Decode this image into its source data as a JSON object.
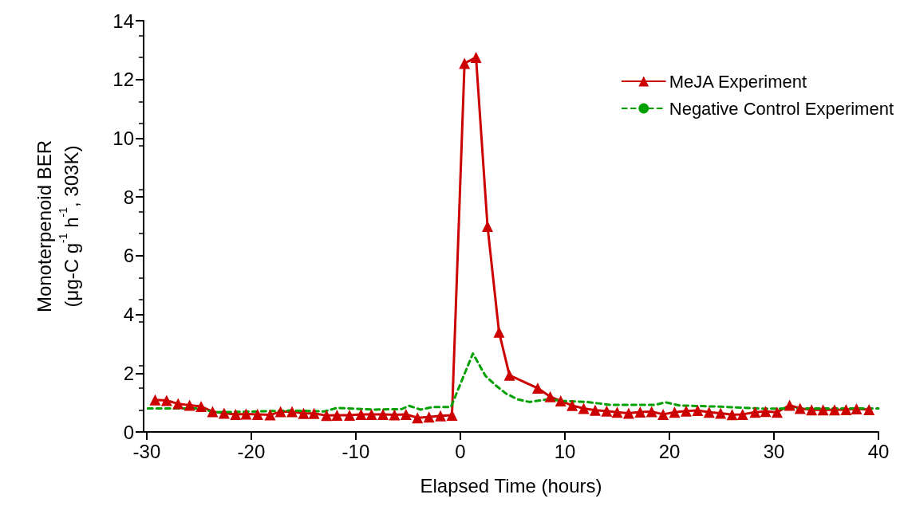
{
  "chart_data": {
    "type": "line",
    "xlabel": "Elapsed Time (hours)",
    "ylabel": "Monoterpenoid BER\n(μg-C g$^{-1}$ h$^{-1}$, 303K)",
    "xlim": [
      -30.3,
      40
    ],
    "xticks": [
      -30,
      -20,
      -10,
      0,
      10,
      20,
      30,
      40
    ],
    "ylim": [
      0,
      14
    ],
    "yticks": [
      0,
      2,
      4,
      6,
      8,
      10,
      12,
      14
    ],
    "grid": false,
    "legend": "top right",
    "series": [
      {
        "name": "MeJA Experiment",
        "color": "#cc0000",
        "marker": "triangle",
        "line_style": "solid",
        "x": [
          -29.2,
          -28.1,
          -27.0,
          -25.9,
          -24.8,
          -23.7,
          -22.6,
          -21.5,
          -20.5,
          -19.4,
          -18.2,
          -17.2,
          -16.1,
          -15.0,
          -14.0,
          -12.8,
          -11.8,
          -10.6,
          -9.5,
          -8.5,
          -7.4,
          -6.3,
          -5.2,
          -4.1,
          -3.0,
          -1.9,
          -0.8,
          0.4,
          1.5,
          2.6,
          3.7,
          4.7,
          7.4,
          8.6,
          9.6,
          10.7,
          11.8,
          12.9,
          14.0,
          15.0,
          16.1,
          17.2,
          18.3,
          19.4,
          20.5,
          21.6,
          22.7,
          23.8,
          24.9,
          26.0,
          27.0,
          28.2,
          29.2,
          30.3,
          31.5,
          32.5,
          33.6,
          34.7,
          35.8,
          36.9,
          37.9,
          39.1
        ],
        "values": [
          1.09,
          1.07,
          0.96,
          0.91,
          0.87,
          0.69,
          0.64,
          0.6,
          0.61,
          0.6,
          0.58,
          0.69,
          0.69,
          0.63,
          0.63,
          0.56,
          0.57,
          0.57,
          0.6,
          0.6,
          0.6,
          0.58,
          0.6,
          0.48,
          0.51,
          0.55,
          0.57,
          12.55,
          12.75,
          7.0,
          3.4,
          1.93,
          1.49,
          1.2,
          1.06,
          0.9,
          0.8,
          0.74,
          0.71,
          0.67,
          0.64,
          0.68,
          0.69,
          0.6,
          0.67,
          0.71,
          0.73,
          0.67,
          0.64,
          0.59,
          0.6,
          0.67,
          0.7,
          0.67,
          0.91,
          0.8,
          0.75,
          0.75,
          0.75,
          0.76,
          0.79,
          0.76
        ]
      },
      {
        "name": "Negative Control Experiment",
        "color": "#00a000",
        "marker": "none",
        "line_style": "dashed",
        "x": [
          -29.9,
          -24.7,
          -23.7,
          -20.4,
          -16.0,
          -13.0,
          -11.8,
          -8.2,
          -5.6,
          -4.9,
          -3.8,
          -2.6,
          -0.9,
          1.2,
          2.4,
          3.4,
          4.4,
          5.5,
          6.6,
          8.4,
          9.7,
          12.1,
          14.4,
          18.6,
          19.6,
          21.0,
          25.0,
          29.2,
          31.3,
          40.0
        ],
        "values": [
          0.8,
          0.8,
          0.67,
          0.69,
          0.73,
          0.7,
          0.82,
          0.76,
          0.78,
          0.89,
          0.76,
          0.85,
          0.85,
          2.67,
          1.91,
          1.58,
          1.3,
          1.11,
          1.02,
          1.11,
          1.06,
          1.02,
          0.92,
          0.92,
          1.01,
          0.9,
          0.86,
          0.79,
          0.8,
          0.8
        ]
      }
    ]
  }
}
